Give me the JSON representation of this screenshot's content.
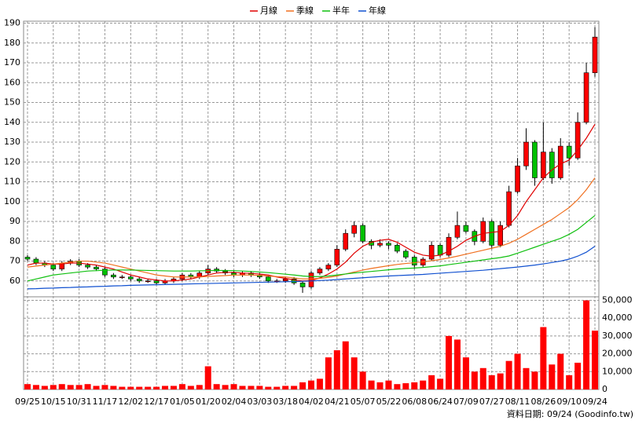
{
  "chart_data": [
    {
      "type": "candlestick",
      "open": [
        72,
        71,
        69,
        68,
        66,
        69,
        70,
        68,
        67,
        66,
        63,
        62,
        62,
        61,
        60,
        60,
        59,
        60,
        61,
        63,
        62,
        64,
        66,
        65,
        64,
        63,
        64,
        63,
        62,
        60,
        60,
        61,
        59,
        57,
        64,
        66,
        68,
        76,
        84,
        88,
        80,
        78,
        79,
        78,
        75,
        72,
        68,
        71,
        78,
        73,
        82,
        88,
        85,
        80,
        90,
        78,
        88,
        105,
        118,
        130,
        112,
        125,
        112,
        128,
        122,
        140,
        165
      ],
      "high": [
        73,
        72,
        70,
        69,
        70,
        71,
        71,
        69,
        68,
        67,
        64,
        63,
        63,
        62,
        61,
        61,
        61,
        62,
        64,
        64,
        65,
        68,
        67,
        66,
        65,
        65,
        65,
        64,
        63,
        61,
        62,
        62,
        60,
        65,
        67,
        69,
        78,
        86,
        90,
        89,
        81,
        81,
        80,
        79,
        76,
        73,
        72,
        80,
        79,
        84,
        95,
        90,
        86,
        92,
        91,
        90,
        108,
        122,
        137,
        131,
        140,
        127,
        132,
        130,
        145,
        170,
        188
      ],
      "low": [
        70,
        68,
        67,
        65,
        65,
        68,
        67,
        66,
        65,
        62,
        61,
        61,
        60,
        59,
        59,
        58,
        58,
        59,
        60,
        61,
        61,
        63,
        64,
        63,
        62,
        62,
        62,
        61,
        59,
        59,
        59,
        58,
        54,
        56,
        63,
        65,
        67,
        75,
        82,
        79,
        76,
        77,
        76,
        74,
        71,
        66,
        67,
        70,
        72,
        72,
        81,
        84,
        78,
        79,
        76,
        77,
        87,
        104,
        116,
        108,
        111,
        109,
        111,
        118,
        121,
        139,
        163
      ],
      "close": [
        71,
        69,
        68,
        66,
        69,
        70,
        68,
        67,
        66,
        63,
        62,
        62,
        61,
        60,
        60,
        59,
        60,
        61,
        63,
        62,
        64,
        66,
        65,
        64,
        63,
        64,
        63,
        62,
        60,
        60,
        61,
        59,
        57,
        64,
        66,
        68,
        76,
        84,
        88,
        80,
        78,
        79,
        78,
        75,
        72,
        68,
        71,
        78,
        73,
        82,
        88,
        85,
        80,
        90,
        78,
        88,
        105,
        118,
        130,
        112,
        125,
        112,
        128,
        122,
        140,
        165,
        183
      ],
      "series": [
        {
          "name": "月線",
          "color": "#e00000",
          "values": [
            68,
            69,
            69,
            68.5,
            68.5,
            69,
            69,
            68.5,
            68,
            67,
            66,
            64.5,
            63,
            62,
            61,
            60.5,
            60,
            60,
            60.5,
            61,
            62,
            63,
            64,
            64.3,
            64.3,
            64,
            63.8,
            63.5,
            63,
            62,
            61.3,
            60.5,
            60,
            60.2,
            61.5,
            63.5,
            66,
            69.5,
            74,
            77.5,
            79.5,
            80.5,
            81,
            79.5,
            77,
            74.5,
            73,
            72.5,
            73,
            75,
            77.5,
            80.5,
            82.5,
            84,
            84.5,
            85,
            88,
            93,
            100,
            106,
            112,
            116,
            119,
            121,
            126,
            132,
            139
          ]
        },
        {
          "name": "季線",
          "color": "#f07020",
          "values": [
            67,
            67.5,
            68,
            68.5,
            69,
            69.5,
            70,
            70,
            69.5,
            69,
            68,
            67,
            66,
            65,
            64,
            63,
            62.5,
            62,
            62,
            62,
            62,
            62.3,
            62.5,
            62.7,
            63,
            63,
            63,
            62.8,
            62.5,
            62.2,
            62,
            61.5,
            61,
            61,
            61.3,
            61.8,
            62.5,
            63.5,
            64.5,
            65.5,
            66.3,
            67,
            67.7,
            68.3,
            68.8,
            69.2,
            69.6,
            70.2,
            70.8,
            71.6,
            72.5,
            73.5,
            74.5,
            75.5,
            76.5,
            77.5,
            79,
            81,
            83.5,
            86,
            88.5,
            91,
            94,
            97,
            101,
            106,
            112
          ]
        },
        {
          "name": "半年",
          "color": "#10c010",
          "values": [
            60,
            61,
            62,
            63,
            63.5,
            64,
            64.5,
            65,
            65.2,
            65.4,
            65.5,
            65.5,
            65.5,
            65.4,
            65.3,
            65.2,
            65.1,
            65,
            65,
            65,
            65.1,
            65.2,
            65.3,
            65.3,
            65.2,
            65,
            64.8,
            64.5,
            64.2,
            63.8,
            63.4,
            63,
            62.5,
            62.2,
            62.2,
            62.5,
            63,
            63.5,
            64,
            64.4,
            64.8,
            65.2,
            65.6,
            66,
            66.3,
            66.5,
            66.8,
            67.2,
            67.6,
            68.2,
            68.8,
            69.4,
            70,
            70.6,
            71.2,
            71.8,
            72.6,
            74,
            75.5,
            77,
            78.5,
            80,
            81.5,
            83.5,
            86,
            89.5,
            93
          ]
        },
        {
          "name": "年線",
          "color": "#1050d0",
          "values": [
            56,
            56.1,
            56.3,
            56.4,
            56.6,
            56.7,
            56.9,
            57,
            57.2,
            57.3,
            57.5,
            57.6,
            57.8,
            57.9,
            58,
            58.1,
            58.2,
            58.3,
            58.4,
            58.5,
            58.6,
            58.7,
            58.8,
            58.9,
            59,
            59.1,
            59.2,
            59.3,
            59.4,
            59.5,
            59.6,
            59.7,
            59.8,
            60,
            60.2,
            60.4,
            60.7,
            61,
            61.3,
            61.6,
            61.9,
            62.2,
            62.5,
            62.7,
            62.9,
            63.1,
            63.3,
            63.6,
            63.9,
            64.2,
            64.5,
            64.8,
            65.1,
            65.4,
            65.8,
            66.2,
            66.6,
            67,
            67.5,
            68,
            68.6,
            69.3,
            70,
            71,
            72.5,
            74.5,
            77.5
          ]
        }
      ],
      "up_color": "#ff0000",
      "down_color": "#00c000",
      "ylim": [
        52,
        191
      ],
      "yticks": [
        60,
        70,
        80,
        90,
        100,
        110,
        120,
        130,
        140,
        150,
        160,
        170,
        180,
        190
      ],
      "grid": true
    },
    {
      "type": "bar",
      "categories": [
        "09/25",
        null,
        null,
        "10/15",
        null,
        null,
        "10/31",
        null,
        null,
        "11/17",
        null,
        null,
        "12/02",
        null,
        null,
        "12/17",
        null,
        null,
        "01/05",
        null,
        null,
        "01/20",
        null,
        null,
        "02/04",
        null,
        null,
        "03/03",
        null,
        null,
        "03/18",
        null,
        null,
        "04/02",
        null,
        null,
        "04/21",
        null,
        null,
        "05/07",
        null,
        null,
        "05/22",
        null,
        null,
        "06/08",
        null,
        null,
        "06/24",
        null,
        null,
        "07/09",
        null,
        null,
        "07/27",
        null,
        null,
        "08/11",
        null,
        null,
        "08/26",
        null,
        null,
        "09/10",
        null,
        null,
        "09/24"
      ],
      "values": [
        3000,
        2500,
        2000,
        2500,
        3000,
        2500,
        2500,
        3000,
        2000,
        2500,
        2000,
        1500,
        1500,
        1500,
        1500,
        1500,
        2000,
        2000,
        3000,
        2000,
        2500,
        13000,
        3000,
        2500,
        3000,
        2000,
        2000,
        2000,
        1500,
        1500,
        2000,
        2000,
        4000,
        5000,
        6000,
        18000,
        22000,
        27000,
        18000,
        10000,
        5000,
        4000,
        5000,
        3000,
        3500,
        4000,
        5000,
        8000,
        6000,
        30000,
        28000,
        18000,
        10000,
        12000,
        8000,
        9000,
        16000,
        20000,
        12000,
        10000,
        35000,
        14000,
        20000,
        8000,
        15000,
        50000,
        33000
      ],
      "color": "#ff0000",
      "ylim": [
        0,
        52000
      ],
      "yticks": [
        0,
        {
          "value": 10000,
          "label": "10,000"
        },
        {
          "value": 20000,
          "label": "20,000"
        },
        {
          "value": 30000,
          "label": "30,000"
        },
        {
          "value": 40000,
          "label": "40,000"
        },
        {
          "value": 50000,
          "label": "50,000"
        }
      ],
      "grid": true
    }
  ],
  "footer": "資料日期: 09/24 (Goodinfo.tw)"
}
